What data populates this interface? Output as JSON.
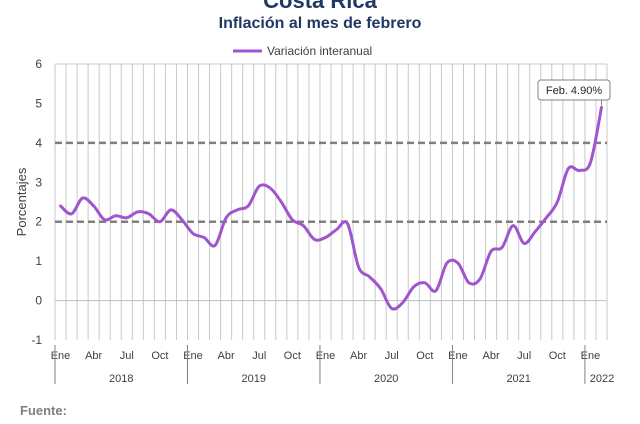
{
  "header": {
    "title": "Costa Rica",
    "subtitle": "Inflación al mes de febrero"
  },
  "footer": {
    "source_label": "Fuente:"
  },
  "chart_data": {
    "type": "line",
    "title": "Inflación al mes de febrero",
    "xlabel": "",
    "ylabel": "Porcentajes",
    "ylim": [
      -1,
      6
    ],
    "yticks": [
      "-1",
      "0",
      "1",
      "2",
      "3",
      "4",
      "5",
      "6"
    ],
    "grid": "vertical",
    "legend_placement": "top-center",
    "month_tick_labels": [
      "Ene",
      "Abr",
      "Jul",
      "Oct"
    ],
    "year_labels": [
      "2018",
      "2019",
      "2020",
      "2021",
      "2022"
    ],
    "series": [
      {
        "name": "Variación interanual",
        "color": "#a055cf",
        "x": [
          "2018-01",
          "2018-02",
          "2018-03",
          "2018-04",
          "2018-05",
          "2018-06",
          "2018-07",
          "2018-08",
          "2018-09",
          "2018-10",
          "2018-11",
          "2018-12",
          "2019-01",
          "2019-02",
          "2019-03",
          "2019-04",
          "2019-05",
          "2019-06",
          "2019-07",
          "2019-08",
          "2019-09",
          "2019-10",
          "2019-11",
          "2019-12",
          "2020-01",
          "2020-02",
          "2020-03",
          "2020-04",
          "2020-05",
          "2020-06",
          "2020-07",
          "2020-08",
          "2020-09",
          "2020-10",
          "2020-11",
          "2020-12",
          "2021-01",
          "2021-02",
          "2021-03",
          "2021-04",
          "2021-05",
          "2021-06",
          "2021-07",
          "2021-08",
          "2021-09",
          "2021-10",
          "2021-11",
          "2021-12",
          "2022-01",
          "2022-02"
        ],
        "values": [
          2.4,
          2.2,
          2.6,
          2.4,
          2.05,
          2.15,
          2.1,
          2.25,
          2.2,
          2.0,
          2.3,
          2.05,
          1.7,
          1.6,
          1.4,
          2.1,
          2.3,
          2.4,
          2.9,
          2.85,
          2.5,
          2.05,
          1.9,
          1.55,
          1.6,
          1.8,
          1.95,
          0.85,
          0.6,
          0.3,
          -0.2,
          -0.05,
          0.35,
          0.45,
          0.25,
          0.95,
          0.95,
          0.45,
          0.55,
          1.25,
          1.35,
          1.9,
          1.45,
          1.75,
          2.1,
          2.5,
          3.35,
          3.3,
          3.5,
          4.9
        ]
      }
    ],
    "reference_lines": [
      2,
      4
    ],
    "annotation": {
      "label": "Feb. 4.90%",
      "target_index": 49
    }
  }
}
